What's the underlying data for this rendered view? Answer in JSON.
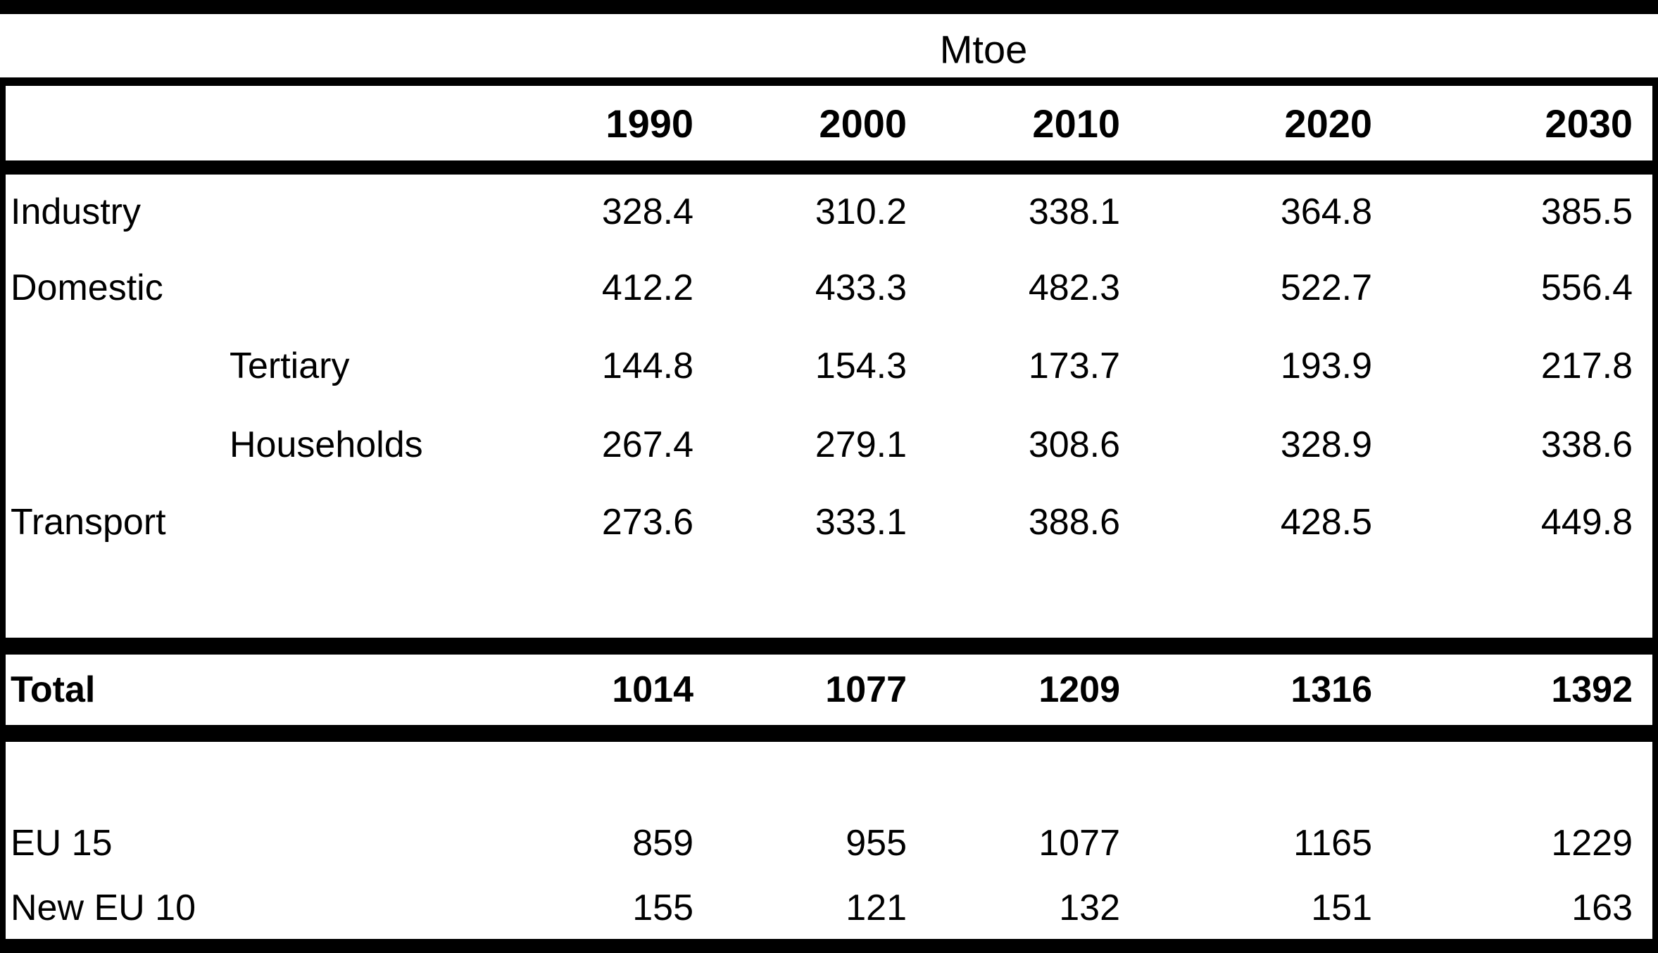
{
  "title": "Mtoe",
  "colors": {
    "border": "#000000",
    "background": "#ffffff",
    "text": "#000000"
  },
  "table": {
    "columns": [
      "1990",
      "2000",
      "2010",
      "2020",
      "2030"
    ],
    "rows": [
      {
        "label": "Industry",
        "indent": false,
        "values": [
          "328.4",
          "310.2",
          "338.1",
          "364.8",
          "385.5"
        ]
      },
      {
        "label": "Domestic",
        "indent": false,
        "values": [
          "412.2",
          "433.3",
          "482.3",
          "522.7",
          "556.4"
        ]
      },
      {
        "label": "Tertiary",
        "indent": true,
        "values": [
          "144.8",
          "154.3",
          "173.7",
          "193.9",
          "217.8"
        ]
      },
      {
        "label": "Households",
        "indent": true,
        "values": [
          "267.4",
          "279.1",
          "308.6",
          "328.9",
          "338.6"
        ]
      },
      {
        "label": "Transport",
        "indent": false,
        "values": [
          "273.6",
          "333.1",
          "388.6",
          "428.5",
          "449.8"
        ]
      }
    ],
    "total": {
      "label": "Total",
      "values": [
        "1014",
        "1077",
        "1209",
        "1316",
        "1392"
      ]
    },
    "breakdown": [
      {
        "label": "EU 15",
        "values": [
          "859",
          "955",
          "1077",
          "1165",
          "1229"
        ]
      },
      {
        "label": "New EU 10",
        "values": [
          "155",
          "121",
          "132",
          "151",
          "163"
        ]
      }
    ]
  },
  "chart_data": {
    "type": "table",
    "title": "Mtoe",
    "categories": [
      "1990",
      "2000",
      "2010",
      "2020",
      "2030"
    ],
    "series": [
      {
        "name": "Industry",
        "values": [
          328.4,
          310.2,
          338.1,
          364.8,
          385.5
        ]
      },
      {
        "name": "Domestic",
        "values": [
          412.2,
          433.3,
          482.3,
          522.7,
          556.4
        ]
      },
      {
        "name": "Tertiary",
        "values": [
          144.8,
          154.3,
          173.7,
          193.9,
          217.8
        ]
      },
      {
        "name": "Households",
        "values": [
          267.4,
          279.1,
          308.6,
          328.9,
          338.6
        ]
      },
      {
        "name": "Transport",
        "values": [
          273.6,
          333.1,
          388.6,
          428.5,
          449.8
        ]
      },
      {
        "name": "Total",
        "values": [
          1014,
          1077,
          1209,
          1316,
          1392
        ]
      },
      {
        "name": "EU 15",
        "values": [
          859,
          955,
          1077,
          1165,
          1229
        ]
      },
      {
        "name": "New EU 10",
        "values": [
          155,
          121,
          132,
          151,
          163
        ]
      }
    ]
  }
}
